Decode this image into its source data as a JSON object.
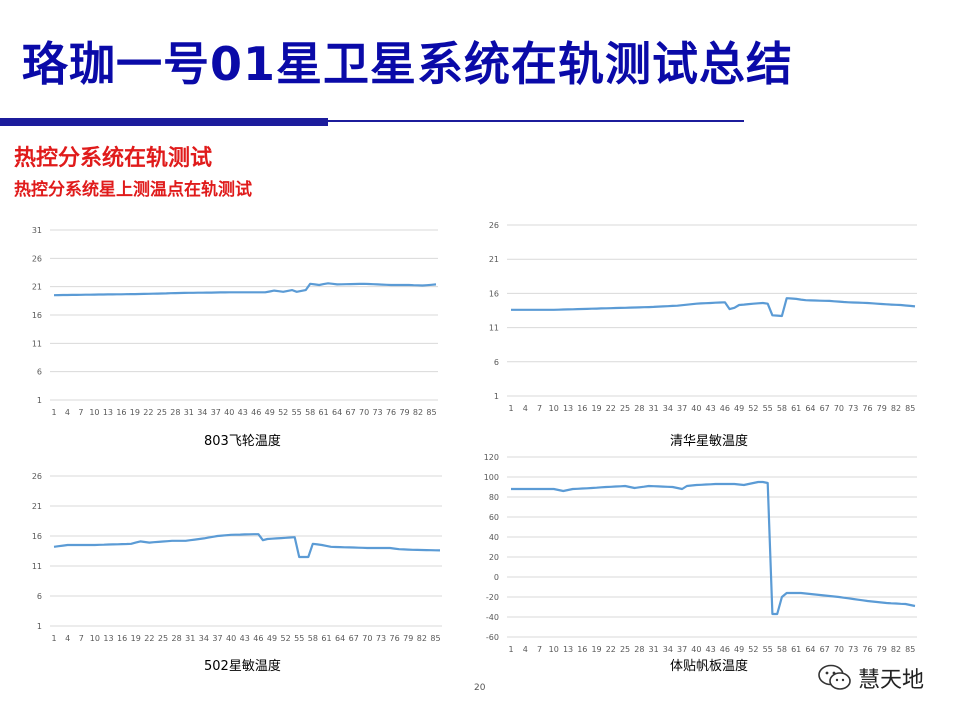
{
  "slide": {
    "title": "珞珈一号01星卫星系统在轨测试总结",
    "heading": "热控分系统在轨测试",
    "subheading": "热控分系统星上测温点在轨测试",
    "page_number": "20"
  },
  "watermark": {
    "text": "慧天地",
    "icon": "wechat-icon"
  },
  "colors": {
    "title": "#0a0aa8",
    "heading": "#e01b1b",
    "line": "#5b9bd5",
    "grid": "#d9d9d9"
  },
  "chart_data": [
    {
      "type": "line",
      "title": "803飞轮温度",
      "x_tick_labels": [
        "1",
        "4",
        "7",
        "10",
        "13",
        "16",
        "19",
        "22",
        "25",
        "28",
        "31",
        "34",
        "37",
        "40",
        "43",
        "46",
        "49",
        "52",
        "55",
        "58",
        "61",
        "64",
        "67",
        "70",
        "73",
        "76",
        "79",
        "82",
        "85"
      ],
      "n_points": 86,
      "ylim": [
        1,
        31
      ],
      "y_ticks": [
        1,
        6,
        11,
        16,
        21,
        26,
        31
      ],
      "grid": true,
      "keypoints": [
        [
          1,
          19.5
        ],
        [
          10,
          19.6
        ],
        [
          20,
          19.7
        ],
        [
          30,
          19.9
        ],
        [
          40,
          20.0
        ],
        [
          48,
          20.0
        ],
        [
          50,
          20.3
        ],
        [
          52,
          20.1
        ],
        [
          54,
          20.4
        ],
        [
          55,
          20.1
        ],
        [
          57,
          20.4
        ],
        [
          58,
          21.5
        ],
        [
          60,
          21.3
        ],
        [
          62,
          21.6
        ],
        [
          64,
          21.4
        ],
        [
          70,
          21.5
        ],
        [
          73,
          21.4
        ],
        [
          76,
          21.3
        ],
        [
          80,
          21.3
        ],
        [
          83,
          21.2
        ],
        [
          86,
          21.4
        ]
      ]
    },
    {
      "type": "line",
      "title": "清华星敏温度",
      "x_tick_labels": [
        "1",
        "4",
        "7",
        "10",
        "13",
        "16",
        "19",
        "22",
        "25",
        "28",
        "31",
        "34",
        "37",
        "40",
        "43",
        "46",
        "49",
        "52",
        "55",
        "58",
        "61",
        "64",
        "67",
        "70",
        "73",
        "76",
        "79",
        "82",
        "85"
      ],
      "n_points": 86,
      "ylim": [
        1,
        26
      ],
      "y_ticks": [
        1,
        6,
        11,
        16,
        21,
        26
      ],
      "grid": true,
      "keypoints": [
        [
          1,
          13.6
        ],
        [
          10,
          13.6
        ],
        [
          20,
          13.8
        ],
        [
          30,
          14.0
        ],
        [
          36,
          14.2
        ],
        [
          40,
          14.5
        ],
        [
          46,
          14.7
        ],
        [
          47,
          13.7
        ],
        [
          48,
          13.9
        ],
        [
          49,
          14.3
        ],
        [
          52,
          14.5
        ],
        [
          54,
          14.6
        ],
        [
          55,
          14.5
        ],
        [
          56,
          12.8
        ],
        [
          58,
          12.7
        ],
        [
          59,
          15.3
        ],
        [
          61,
          15.2
        ],
        [
          63,
          15.0
        ],
        [
          68,
          14.9
        ],
        [
          72,
          14.7
        ],
        [
          76,
          14.6
        ],
        [
          80,
          14.4
        ],
        [
          83,
          14.3
        ],
        [
          86,
          14.1
        ]
      ]
    },
    {
      "type": "line",
      "title": "502星敏温度",
      "x_tick_labels": [
        "1",
        "4",
        "7",
        "10",
        "13",
        "16",
        "19",
        "22",
        "25",
        "28",
        "31",
        "34",
        "37",
        "40",
        "43",
        "46",
        "49",
        "52",
        "55",
        "58",
        "61",
        "64",
        "67",
        "70",
        "73",
        "76",
        "79",
        "82",
        "85"
      ],
      "n_points": 86,
      "ylim": [
        1,
        26
      ],
      "y_ticks": [
        1,
        6,
        11,
        16,
        21,
        26
      ],
      "grid": true,
      "keypoints": [
        [
          1,
          14.2
        ],
        [
          4,
          14.5
        ],
        [
          10,
          14.5
        ],
        [
          18,
          14.7
        ],
        [
          20,
          15.1
        ],
        [
          22,
          14.9
        ],
        [
          27,
          15.2
        ],
        [
          30,
          15.2
        ],
        [
          34,
          15.6
        ],
        [
          37,
          16.0
        ],
        [
          40,
          16.2
        ],
        [
          45,
          16.3
        ],
        [
          46,
          16.3
        ],
        [
          47,
          15.3
        ],
        [
          48,
          15.5
        ],
        [
          50,
          15.6
        ],
        [
          54,
          15.8
        ],
        [
          55,
          12.5
        ],
        [
          57,
          12.5
        ],
        [
          58,
          14.7
        ],
        [
          60,
          14.5
        ],
        [
          62,
          14.2
        ],
        [
          66,
          14.1
        ],
        [
          70,
          14.0
        ],
        [
          75,
          14.0
        ],
        [
          77,
          13.8
        ],
        [
          80,
          13.7
        ],
        [
          86,
          13.6
        ]
      ]
    },
    {
      "type": "line",
      "title": "体贴帆板温度",
      "x_tick_labels": [
        "1",
        "4",
        "7",
        "10",
        "13",
        "16",
        "19",
        "22",
        "25",
        "28",
        "31",
        "34",
        "37",
        "40",
        "43",
        "46",
        "49",
        "52",
        "55",
        "58",
        "61",
        "64",
        "67",
        "70",
        "73",
        "76",
        "79",
        "82",
        "85"
      ],
      "n_points": 86,
      "ylim": [
        -60,
        120
      ],
      "y_ticks": [
        -60,
        -40,
        -20,
        0,
        20,
        40,
        60,
        80,
        100,
        120
      ],
      "grid": true,
      "keypoints": [
        [
          1,
          88
        ],
        [
          5,
          88
        ],
        [
          10,
          88
        ],
        [
          12,
          86
        ],
        [
          14,
          88
        ],
        [
          18,
          89
        ],
        [
          21,
          90
        ],
        [
          25,
          91
        ],
        [
          27,
          89
        ],
        [
          30,
          91
        ],
        [
          35,
          90
        ],
        [
          37,
          88
        ],
        [
          38,
          91
        ],
        [
          40,
          92
        ],
        [
          44,
          93
        ],
        [
          48,
          93
        ],
        [
          50,
          92
        ],
        [
          52,
          94
        ],
        [
          53,
          95
        ],
        [
          54,
          95
        ],
        [
          55,
          94
        ],
        [
          56,
          -37
        ],
        [
          57,
          -37
        ],
        [
          58,
          -20
        ],
        [
          59,
          -16
        ],
        [
          62,
          -16
        ],
        [
          66,
          -18
        ],
        [
          70,
          -20
        ],
        [
          73,
          -22
        ],
        [
          76,
          -24
        ],
        [
          80,
          -26
        ],
        [
          84,
          -27
        ],
        [
          86,
          -29
        ]
      ]
    }
  ]
}
